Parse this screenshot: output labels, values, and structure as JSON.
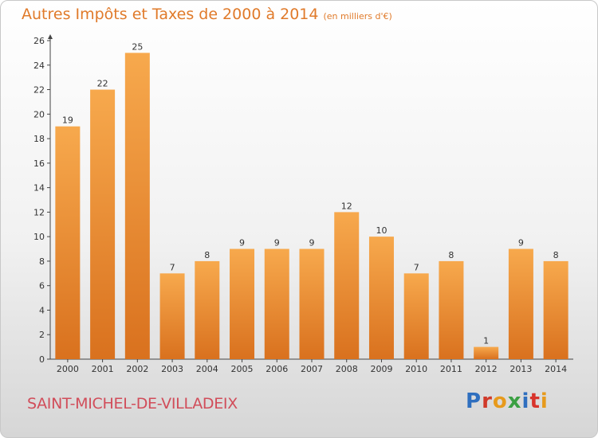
{
  "header": {
    "title": "Autres Impôts et Taxes de 2000 à 2014",
    "unit": "(en milliers d'€)"
  },
  "footer": {
    "commune": "SAINT-MICHEL-DE-VILLADEIX",
    "brand": "Proxiti",
    "brand_colors": [
      "#2f6fbf",
      "#d03a2a",
      "#e79a1c",
      "#3ba043",
      "#2f6fbf",
      "#d8342c",
      "#e79a1c"
    ]
  },
  "colors": {
    "bar_light": "#f7a94d",
    "bar_dark": "#d9711e",
    "text": "#e07a2a",
    "commune": "#d14d5a",
    "axis": "#444444"
  },
  "chart_data": {
    "type": "bar",
    "categories": [
      "2000",
      "2001",
      "2002",
      "2003",
      "2004",
      "2005",
      "2006",
      "2007",
      "2008",
      "2009",
      "2010",
      "2011",
      "2012",
      "2013",
      "2014"
    ],
    "values": [
      19,
      22,
      25,
      7,
      8,
      9,
      9,
      9,
      12,
      10,
      7,
      8,
      1,
      9,
      8
    ],
    "title": "Autres Impôts et Taxes de 2000 à 2014",
    "ylabel": "",
    "xlabel": "",
    "ylim": [
      0,
      26
    ],
    "yticks": [
      0,
      2,
      4,
      6,
      8,
      10,
      12,
      14,
      16,
      18,
      20,
      22,
      24,
      26
    ],
    "grid": false,
    "data_labels": true
  }
}
